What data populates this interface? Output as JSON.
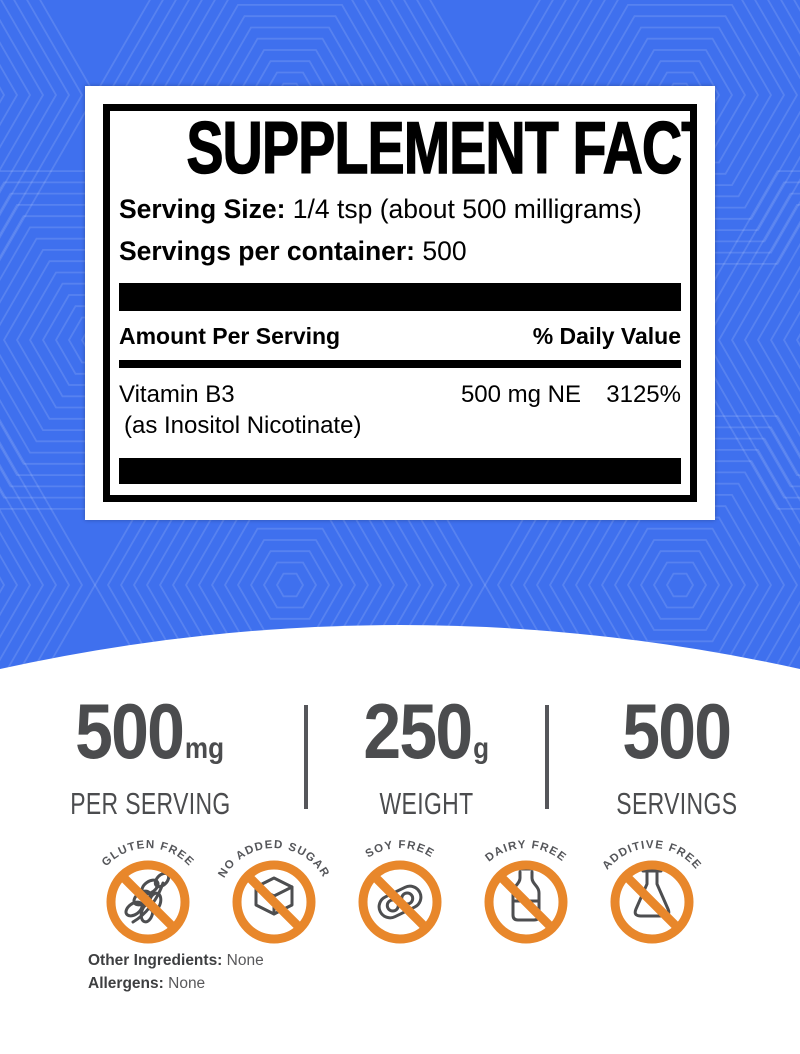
{
  "facts": {
    "title": "SUPPLEMENT FACTS",
    "serving_size_label": "Serving Size:",
    "serving_size_value": "1/4 tsp (about 500 milligrams)",
    "servings_label": "Servings per container:",
    "servings_value": "500",
    "amount_header": "Amount Per Serving",
    "dv_header": "% Daily Value",
    "rows": [
      {
        "name": "Vitamin B3",
        "form": "(as Inositol Nicotinate)",
        "amount": "500 mg NE",
        "daily_value": "3125%"
      }
    ]
  },
  "stats": [
    {
      "value": "500",
      "unit": "mg",
      "label": "PER SERVING"
    },
    {
      "value": "250",
      "unit": "g",
      "label": "WEIGHT"
    },
    {
      "value": "500",
      "unit": "",
      "label": "SERVINGS"
    }
  ],
  "badges": [
    {
      "label": "GLUTEN FREE",
      "icon": "wheat-icon"
    },
    {
      "label": "NO ADDED SUGAR",
      "icon": "sugar-cube-icon"
    },
    {
      "label": "SOY FREE",
      "icon": "soy-pod-icon"
    },
    {
      "label": "DAIRY FREE",
      "icon": "milk-bottle-icon"
    },
    {
      "label": "ADDITIVE FREE",
      "icon": "flask-icon"
    }
  ],
  "footer": {
    "other_ingredients_label": "Other Ingredients:",
    "other_ingredients_value": "None",
    "allergens_label": "Allergens:",
    "allergens_value": "None"
  },
  "colors": {
    "background_blue": "#3F70EE",
    "badge_orange": "#E8872B",
    "stats_gray": "#4B4C4E",
    "panel_black": "#000000"
  }
}
